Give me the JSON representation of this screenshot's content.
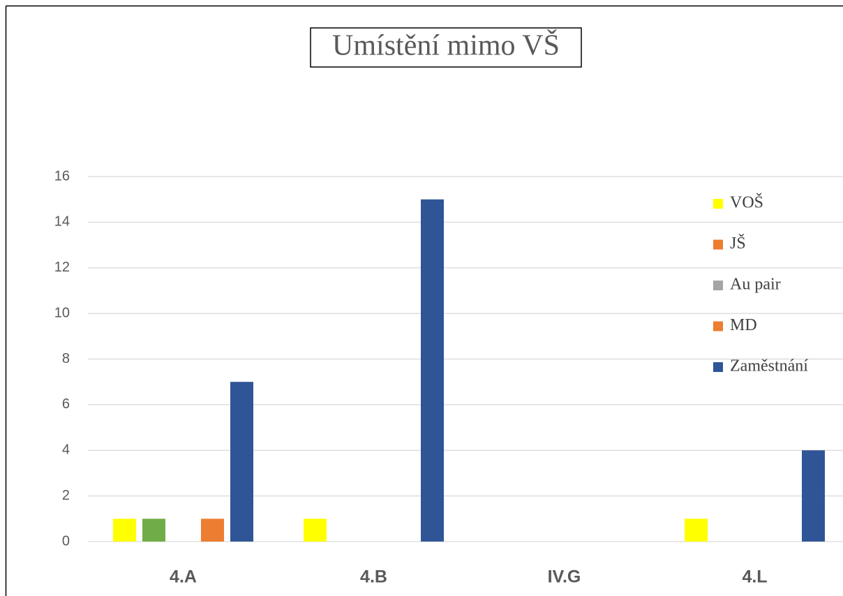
{
  "chart_data": {
    "type": "bar",
    "title": "Umístění mimo VŠ",
    "categories": [
      "4.A",
      "4.B",
      "IV.G",
      "4.L"
    ],
    "series": [
      {
        "name": "VOŠ",
        "color": "#ffff00",
        "legend_color": "#ffff00",
        "values": [
          1,
          1,
          0,
          1
        ]
      },
      {
        "name": "JŠ",
        "color": "#70ad47",
        "legend_color": "#ed7d31",
        "values": [
          1,
          0,
          0,
          0
        ]
      },
      {
        "name": "Au pair",
        "color": "#a5a5a5",
        "legend_color": "#a5a5a5",
        "values": [
          0,
          0,
          0,
          0
        ]
      },
      {
        "name": "MD",
        "color": "#ed7d31",
        "legend_color": "#ed7d31",
        "values": [
          1,
          0,
          0,
          0
        ]
      },
      {
        "name": "Zaměstnání",
        "color": "#2f5597",
        "legend_color": "#2f5597",
        "values": [
          7,
          15,
          0,
          4
        ]
      }
    ],
    "ylim": [
      0,
      16
    ],
    "yticks": [
      0,
      2,
      4,
      6,
      8,
      10,
      12,
      14,
      16
    ],
    "grid": true,
    "legend": "right"
  }
}
